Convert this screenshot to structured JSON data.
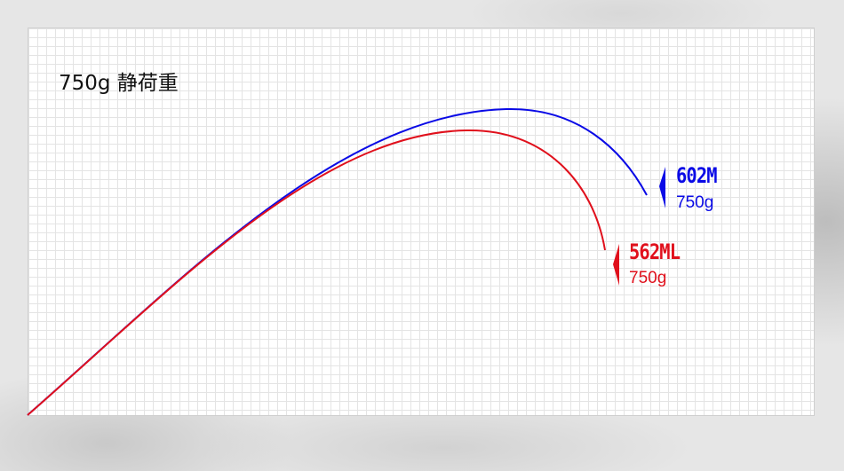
{
  "title": "750g 静荷重",
  "series": [
    {
      "model": "602M",
      "load": "750g",
      "color": "#0a0ae6"
    },
    {
      "model": "562ML",
      "load": "750g",
      "color": "#e0101c"
    }
  ]
}
